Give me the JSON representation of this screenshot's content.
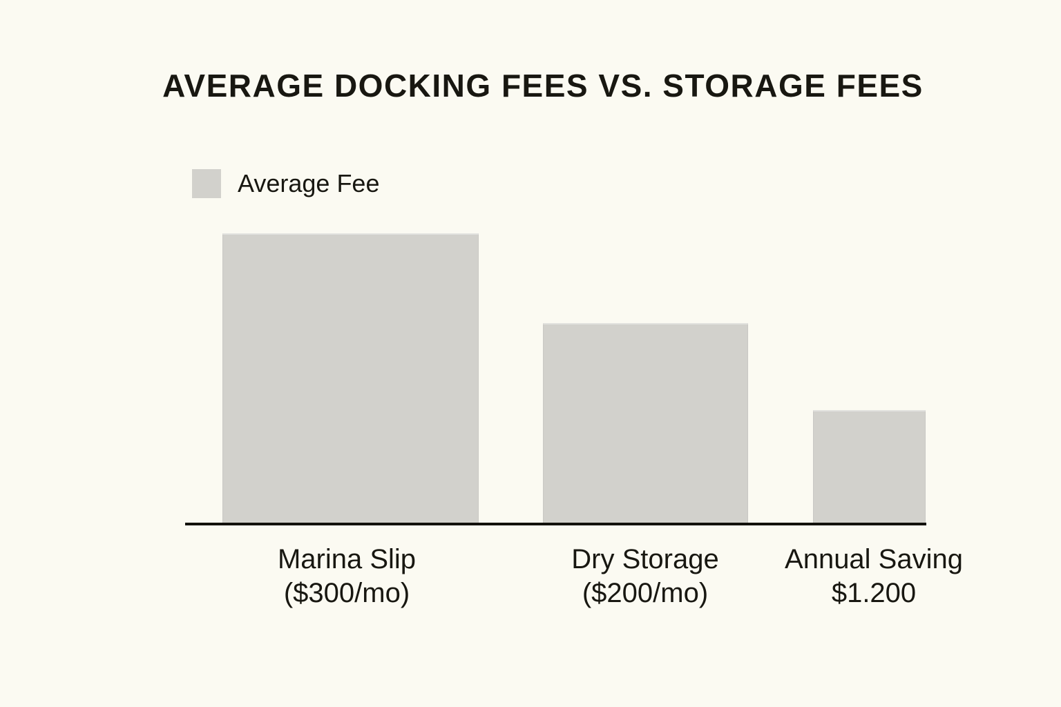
{
  "page": {
    "background_color": "#fbfaf2",
    "text_color": "#181711"
  },
  "chart_data": {
    "type": "bar",
    "title": "AVERAGE DOCKING FEES VS. STORAGE FEES",
    "legend": {
      "label": "Average Fee",
      "position": "top-left",
      "swatch_color": "#d2d1cc"
    },
    "bar_color": "#d2d1cc",
    "axis": {
      "baseline_color": "#12110c",
      "gridlines": false,
      "y_axis_visible": false,
      "value_labels_on_bars": false
    },
    "categories": [
      "Marina Slip",
      "Dry Storage",
      "Annual Saving"
    ],
    "series": [
      {
        "name": "Average Fee",
        "values": [
          300,
          200,
          1200
        ]
      }
    ],
    "bars": [
      {
        "label": "Marina Slip",
        "sublabel": "($300/mo)",
        "value": 300,
        "height_frac": 1.0
      },
      {
        "label": "Dry Storage",
        "sublabel": "($200/mo)",
        "value": 200,
        "height_frac": 0.69
      },
      {
        "label": "Annual Saving",
        "sublabel": "$1.200",
        "value": 1200,
        "height_frac": 0.39
      }
    ]
  }
}
